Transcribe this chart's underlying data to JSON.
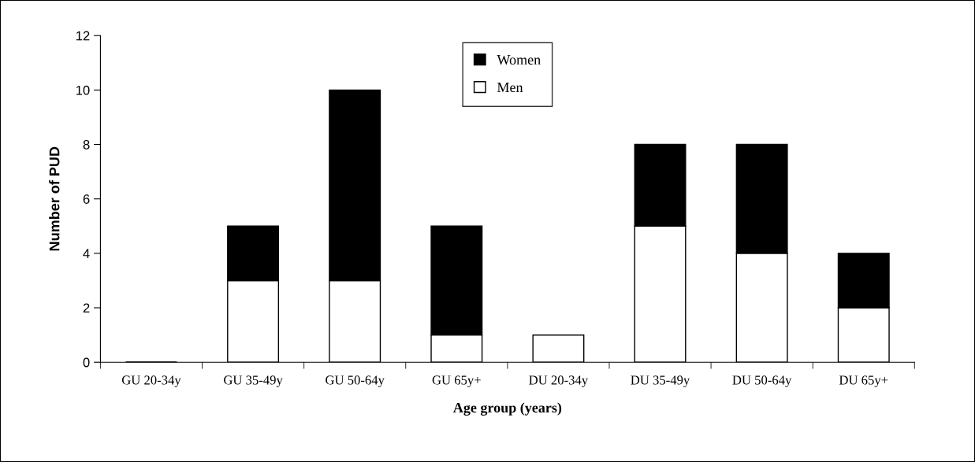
{
  "chart_data": {
    "type": "bar",
    "stacked": true,
    "categories": [
      "GU 20-34y",
      "GU 35-49y",
      "GU 50-64y",
      "GU 65y+",
      "DU 20-34y",
      "DU 35-49y",
      "DU 50-64y",
      "DU 65y+"
    ],
    "series": [
      {
        "name": "Men",
        "color": "#ffffff",
        "values": [
          0,
          3,
          3,
          1,
          1,
          5,
          4,
          2
        ]
      },
      {
        "name": "Women",
        "color": "#000000",
        "values": [
          0,
          2,
          7,
          4,
          0,
          3,
          4,
          2
        ]
      }
    ],
    "xlabel": "Age group (years)",
    "ylabel": "Number of PUD",
    "ylim": [
      0,
      12
    ],
    "yticks": [
      0,
      2,
      4,
      6,
      8,
      10,
      12
    ],
    "grid": false,
    "legend": "top"
  }
}
